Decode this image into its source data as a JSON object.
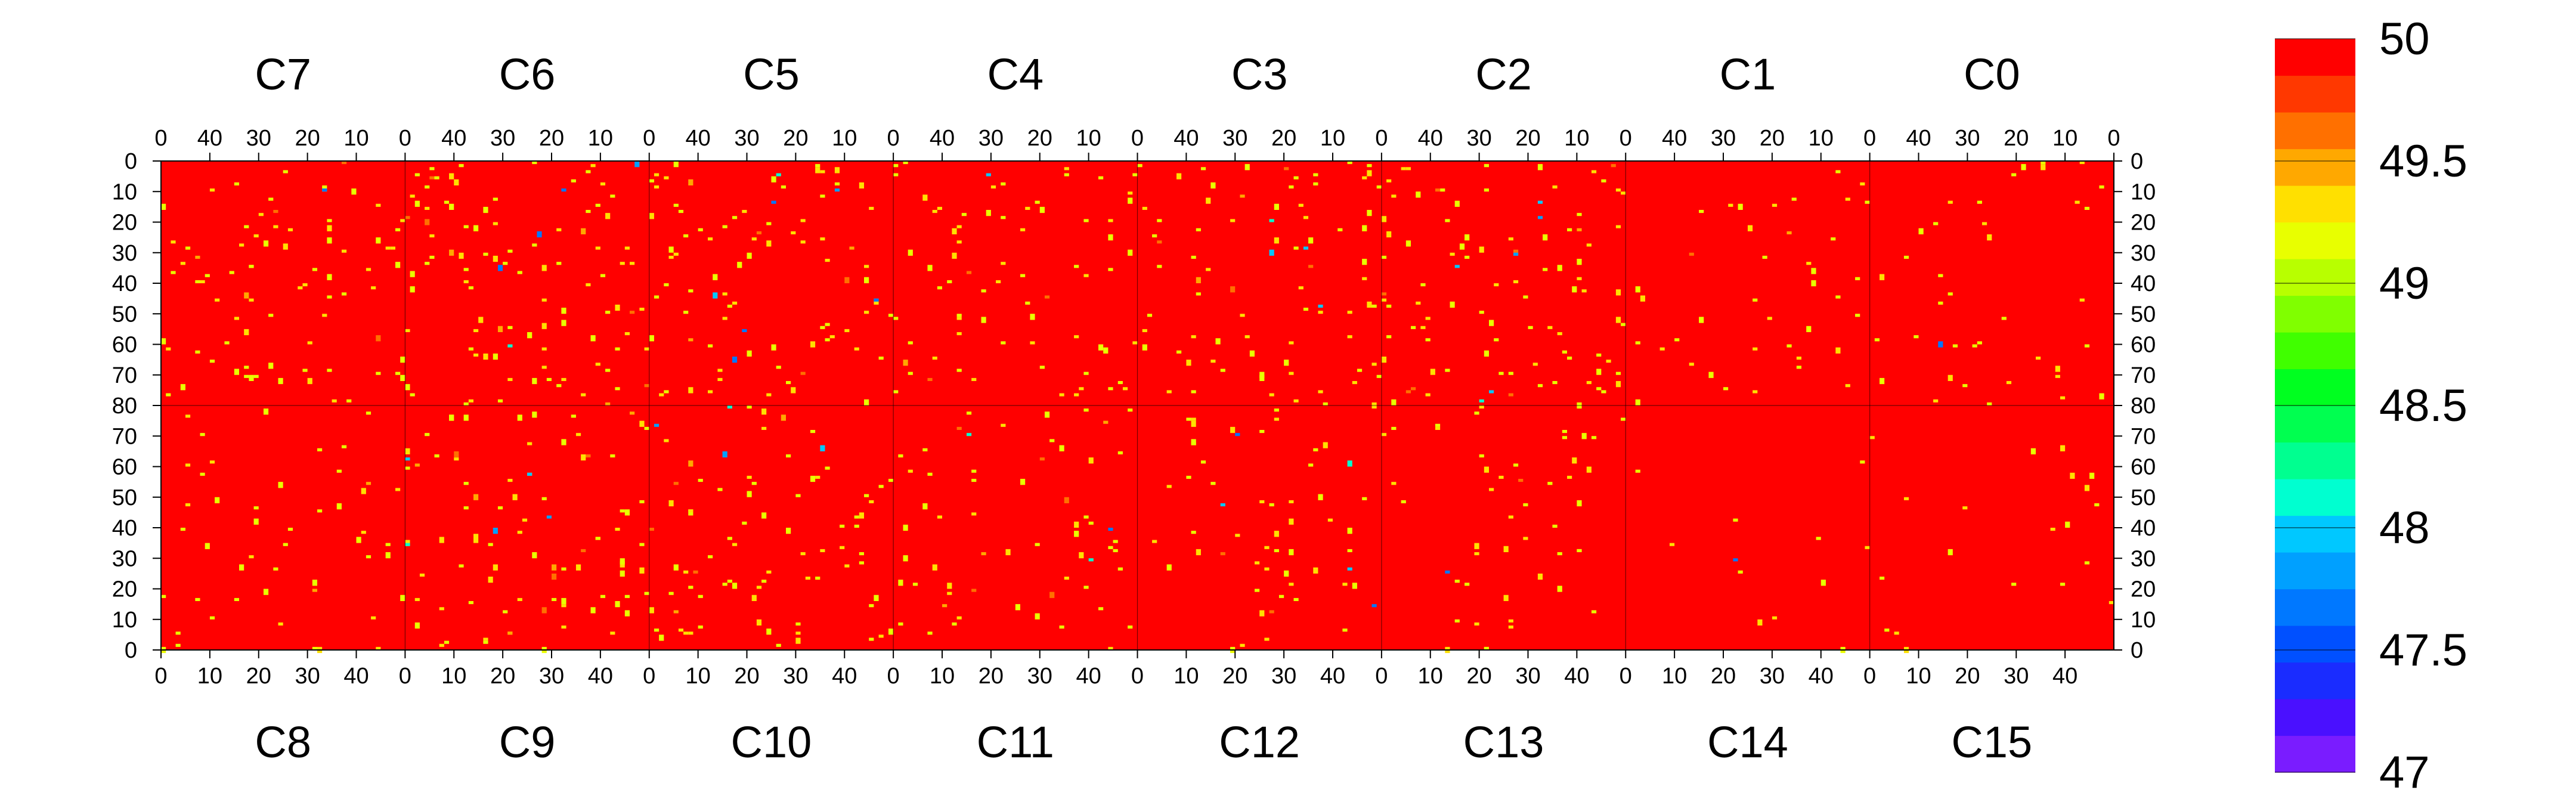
{
  "chart_data": {
    "type": "heatmap",
    "title": "",
    "top_chip_labels": [
      "C7",
      "C6",
      "C5",
      "C4",
      "C3",
      "C2",
      "C1",
      "C0"
    ],
    "bottom_chip_labels": [
      "C8",
      "C9",
      "C10",
      "C11",
      "C12",
      "C13",
      "C14",
      "C15"
    ],
    "top_x_ticks": [
      40,
      30,
      20,
      10,
      0
    ],
    "bottom_x_ticks": [
      0,
      10,
      20,
      30,
      40
    ],
    "y_ticks_top_half": [
      0,
      10,
      20,
      30,
      40,
      50,
      60,
      70,
      80
    ],
    "y_ticks_bottom_half": [
      70,
      60,
      50,
      40,
      30,
      20,
      10,
      0
    ],
    "columns_per_chip": 50,
    "rows_per_half": 80,
    "background_value": 50,
    "colorbar": {
      "min": 47,
      "max": 50,
      "tick_values": [
        50,
        49.5,
        49,
        48.5,
        48,
        47.5,
        47
      ],
      "tick_labels": [
        "50",
        "49.5",
        "49",
        "48.5",
        "48",
        "47.5",
        "47"
      ],
      "colors": [
        "#7a1cff",
        "#4a10ff",
        "#1a2cff",
        "#0050ff",
        "#0078ff",
        "#00a0ff",
        "#00c8ff",
        "#00ffd0",
        "#00ff90",
        "#00ff50",
        "#00ff20",
        "#40ff00",
        "#80ff00",
        "#b8ff00",
        "#e8ff00",
        "#ffe000",
        "#ffa800",
        "#ff7000",
        "#ff3800",
        "#ff0000"
      ]
    },
    "outlier_density_per_chip": [
      0.02,
      0.025,
      0.022,
      0.018,
      0.02,
      0.024,
      0.01,
      0.01,
      0.012,
      0.022,
      0.02,
      0.015,
      0.014,
      0.012,
      0.003,
      0.005
    ]
  }
}
